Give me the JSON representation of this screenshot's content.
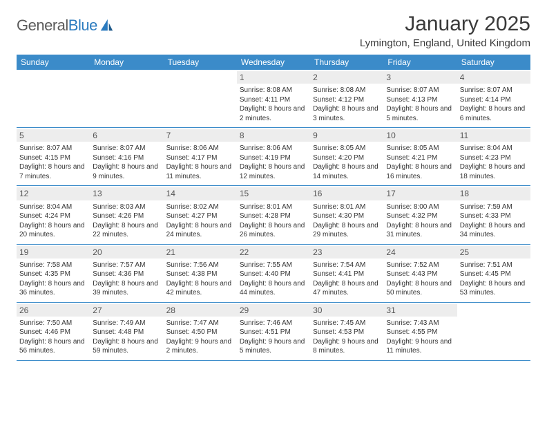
{
  "logo": {
    "text_gray": "General",
    "text_blue": "Blue"
  },
  "title": "January 2025",
  "location": "Lymington, England, United Kingdom",
  "colors": {
    "header_bg": "#3b8bc9",
    "header_text": "#ffffff",
    "daynum_bg": "#ededed",
    "daynum_text": "#555555",
    "body_text": "#333333",
    "rule": "#3b8bc9",
    "logo_gray": "#5a5a5a",
    "logo_blue": "#2b7bbf"
  },
  "typography": {
    "title_fontsize": 30,
    "location_fontsize": 15,
    "dayheader_fontsize": 12,
    "daynum_fontsize": 12,
    "cell_fontsize": 10
  },
  "day_names": [
    "Sunday",
    "Monday",
    "Tuesday",
    "Wednesday",
    "Thursday",
    "Friday",
    "Saturday"
  ],
  "weeks": [
    [
      {
        "n": "",
        "sr": "",
        "ss": "",
        "dl": ""
      },
      {
        "n": "",
        "sr": "",
        "ss": "",
        "dl": ""
      },
      {
        "n": "",
        "sr": "",
        "ss": "",
        "dl": ""
      },
      {
        "n": "1",
        "sr": "Sunrise: 8:08 AM",
        "ss": "Sunset: 4:11 PM",
        "dl": "Daylight: 8 hours and 2 minutes."
      },
      {
        "n": "2",
        "sr": "Sunrise: 8:08 AM",
        "ss": "Sunset: 4:12 PM",
        "dl": "Daylight: 8 hours and 3 minutes."
      },
      {
        "n": "3",
        "sr": "Sunrise: 8:07 AM",
        "ss": "Sunset: 4:13 PM",
        "dl": "Daylight: 8 hours and 5 minutes."
      },
      {
        "n": "4",
        "sr": "Sunrise: 8:07 AM",
        "ss": "Sunset: 4:14 PM",
        "dl": "Daylight: 8 hours and 6 minutes."
      }
    ],
    [
      {
        "n": "5",
        "sr": "Sunrise: 8:07 AM",
        "ss": "Sunset: 4:15 PM",
        "dl": "Daylight: 8 hours and 7 minutes."
      },
      {
        "n": "6",
        "sr": "Sunrise: 8:07 AM",
        "ss": "Sunset: 4:16 PM",
        "dl": "Daylight: 8 hours and 9 minutes."
      },
      {
        "n": "7",
        "sr": "Sunrise: 8:06 AM",
        "ss": "Sunset: 4:17 PM",
        "dl": "Daylight: 8 hours and 11 minutes."
      },
      {
        "n": "8",
        "sr": "Sunrise: 8:06 AM",
        "ss": "Sunset: 4:19 PM",
        "dl": "Daylight: 8 hours and 12 minutes."
      },
      {
        "n": "9",
        "sr": "Sunrise: 8:05 AM",
        "ss": "Sunset: 4:20 PM",
        "dl": "Daylight: 8 hours and 14 minutes."
      },
      {
        "n": "10",
        "sr": "Sunrise: 8:05 AM",
        "ss": "Sunset: 4:21 PM",
        "dl": "Daylight: 8 hours and 16 minutes."
      },
      {
        "n": "11",
        "sr": "Sunrise: 8:04 AM",
        "ss": "Sunset: 4:23 PM",
        "dl": "Daylight: 8 hours and 18 minutes."
      }
    ],
    [
      {
        "n": "12",
        "sr": "Sunrise: 8:04 AM",
        "ss": "Sunset: 4:24 PM",
        "dl": "Daylight: 8 hours and 20 minutes."
      },
      {
        "n": "13",
        "sr": "Sunrise: 8:03 AM",
        "ss": "Sunset: 4:26 PM",
        "dl": "Daylight: 8 hours and 22 minutes."
      },
      {
        "n": "14",
        "sr": "Sunrise: 8:02 AM",
        "ss": "Sunset: 4:27 PM",
        "dl": "Daylight: 8 hours and 24 minutes."
      },
      {
        "n": "15",
        "sr": "Sunrise: 8:01 AM",
        "ss": "Sunset: 4:28 PM",
        "dl": "Daylight: 8 hours and 26 minutes."
      },
      {
        "n": "16",
        "sr": "Sunrise: 8:01 AM",
        "ss": "Sunset: 4:30 PM",
        "dl": "Daylight: 8 hours and 29 minutes."
      },
      {
        "n": "17",
        "sr": "Sunrise: 8:00 AM",
        "ss": "Sunset: 4:32 PM",
        "dl": "Daylight: 8 hours and 31 minutes."
      },
      {
        "n": "18",
        "sr": "Sunrise: 7:59 AM",
        "ss": "Sunset: 4:33 PM",
        "dl": "Daylight: 8 hours and 34 minutes."
      }
    ],
    [
      {
        "n": "19",
        "sr": "Sunrise: 7:58 AM",
        "ss": "Sunset: 4:35 PM",
        "dl": "Daylight: 8 hours and 36 minutes."
      },
      {
        "n": "20",
        "sr": "Sunrise: 7:57 AM",
        "ss": "Sunset: 4:36 PM",
        "dl": "Daylight: 8 hours and 39 minutes."
      },
      {
        "n": "21",
        "sr": "Sunrise: 7:56 AM",
        "ss": "Sunset: 4:38 PM",
        "dl": "Daylight: 8 hours and 42 minutes."
      },
      {
        "n": "22",
        "sr": "Sunrise: 7:55 AM",
        "ss": "Sunset: 4:40 PM",
        "dl": "Daylight: 8 hours and 44 minutes."
      },
      {
        "n": "23",
        "sr": "Sunrise: 7:54 AM",
        "ss": "Sunset: 4:41 PM",
        "dl": "Daylight: 8 hours and 47 minutes."
      },
      {
        "n": "24",
        "sr": "Sunrise: 7:52 AM",
        "ss": "Sunset: 4:43 PM",
        "dl": "Daylight: 8 hours and 50 minutes."
      },
      {
        "n": "25",
        "sr": "Sunrise: 7:51 AM",
        "ss": "Sunset: 4:45 PM",
        "dl": "Daylight: 8 hours and 53 minutes."
      }
    ],
    [
      {
        "n": "26",
        "sr": "Sunrise: 7:50 AM",
        "ss": "Sunset: 4:46 PM",
        "dl": "Daylight: 8 hours and 56 minutes."
      },
      {
        "n": "27",
        "sr": "Sunrise: 7:49 AM",
        "ss": "Sunset: 4:48 PM",
        "dl": "Daylight: 8 hours and 59 minutes."
      },
      {
        "n": "28",
        "sr": "Sunrise: 7:47 AM",
        "ss": "Sunset: 4:50 PM",
        "dl": "Daylight: 9 hours and 2 minutes."
      },
      {
        "n": "29",
        "sr": "Sunrise: 7:46 AM",
        "ss": "Sunset: 4:51 PM",
        "dl": "Daylight: 9 hours and 5 minutes."
      },
      {
        "n": "30",
        "sr": "Sunrise: 7:45 AM",
        "ss": "Sunset: 4:53 PM",
        "dl": "Daylight: 9 hours and 8 minutes."
      },
      {
        "n": "31",
        "sr": "Sunrise: 7:43 AM",
        "ss": "Sunset: 4:55 PM",
        "dl": "Daylight: 9 hours and 11 minutes."
      },
      {
        "n": "",
        "sr": "",
        "ss": "",
        "dl": ""
      }
    ]
  ]
}
